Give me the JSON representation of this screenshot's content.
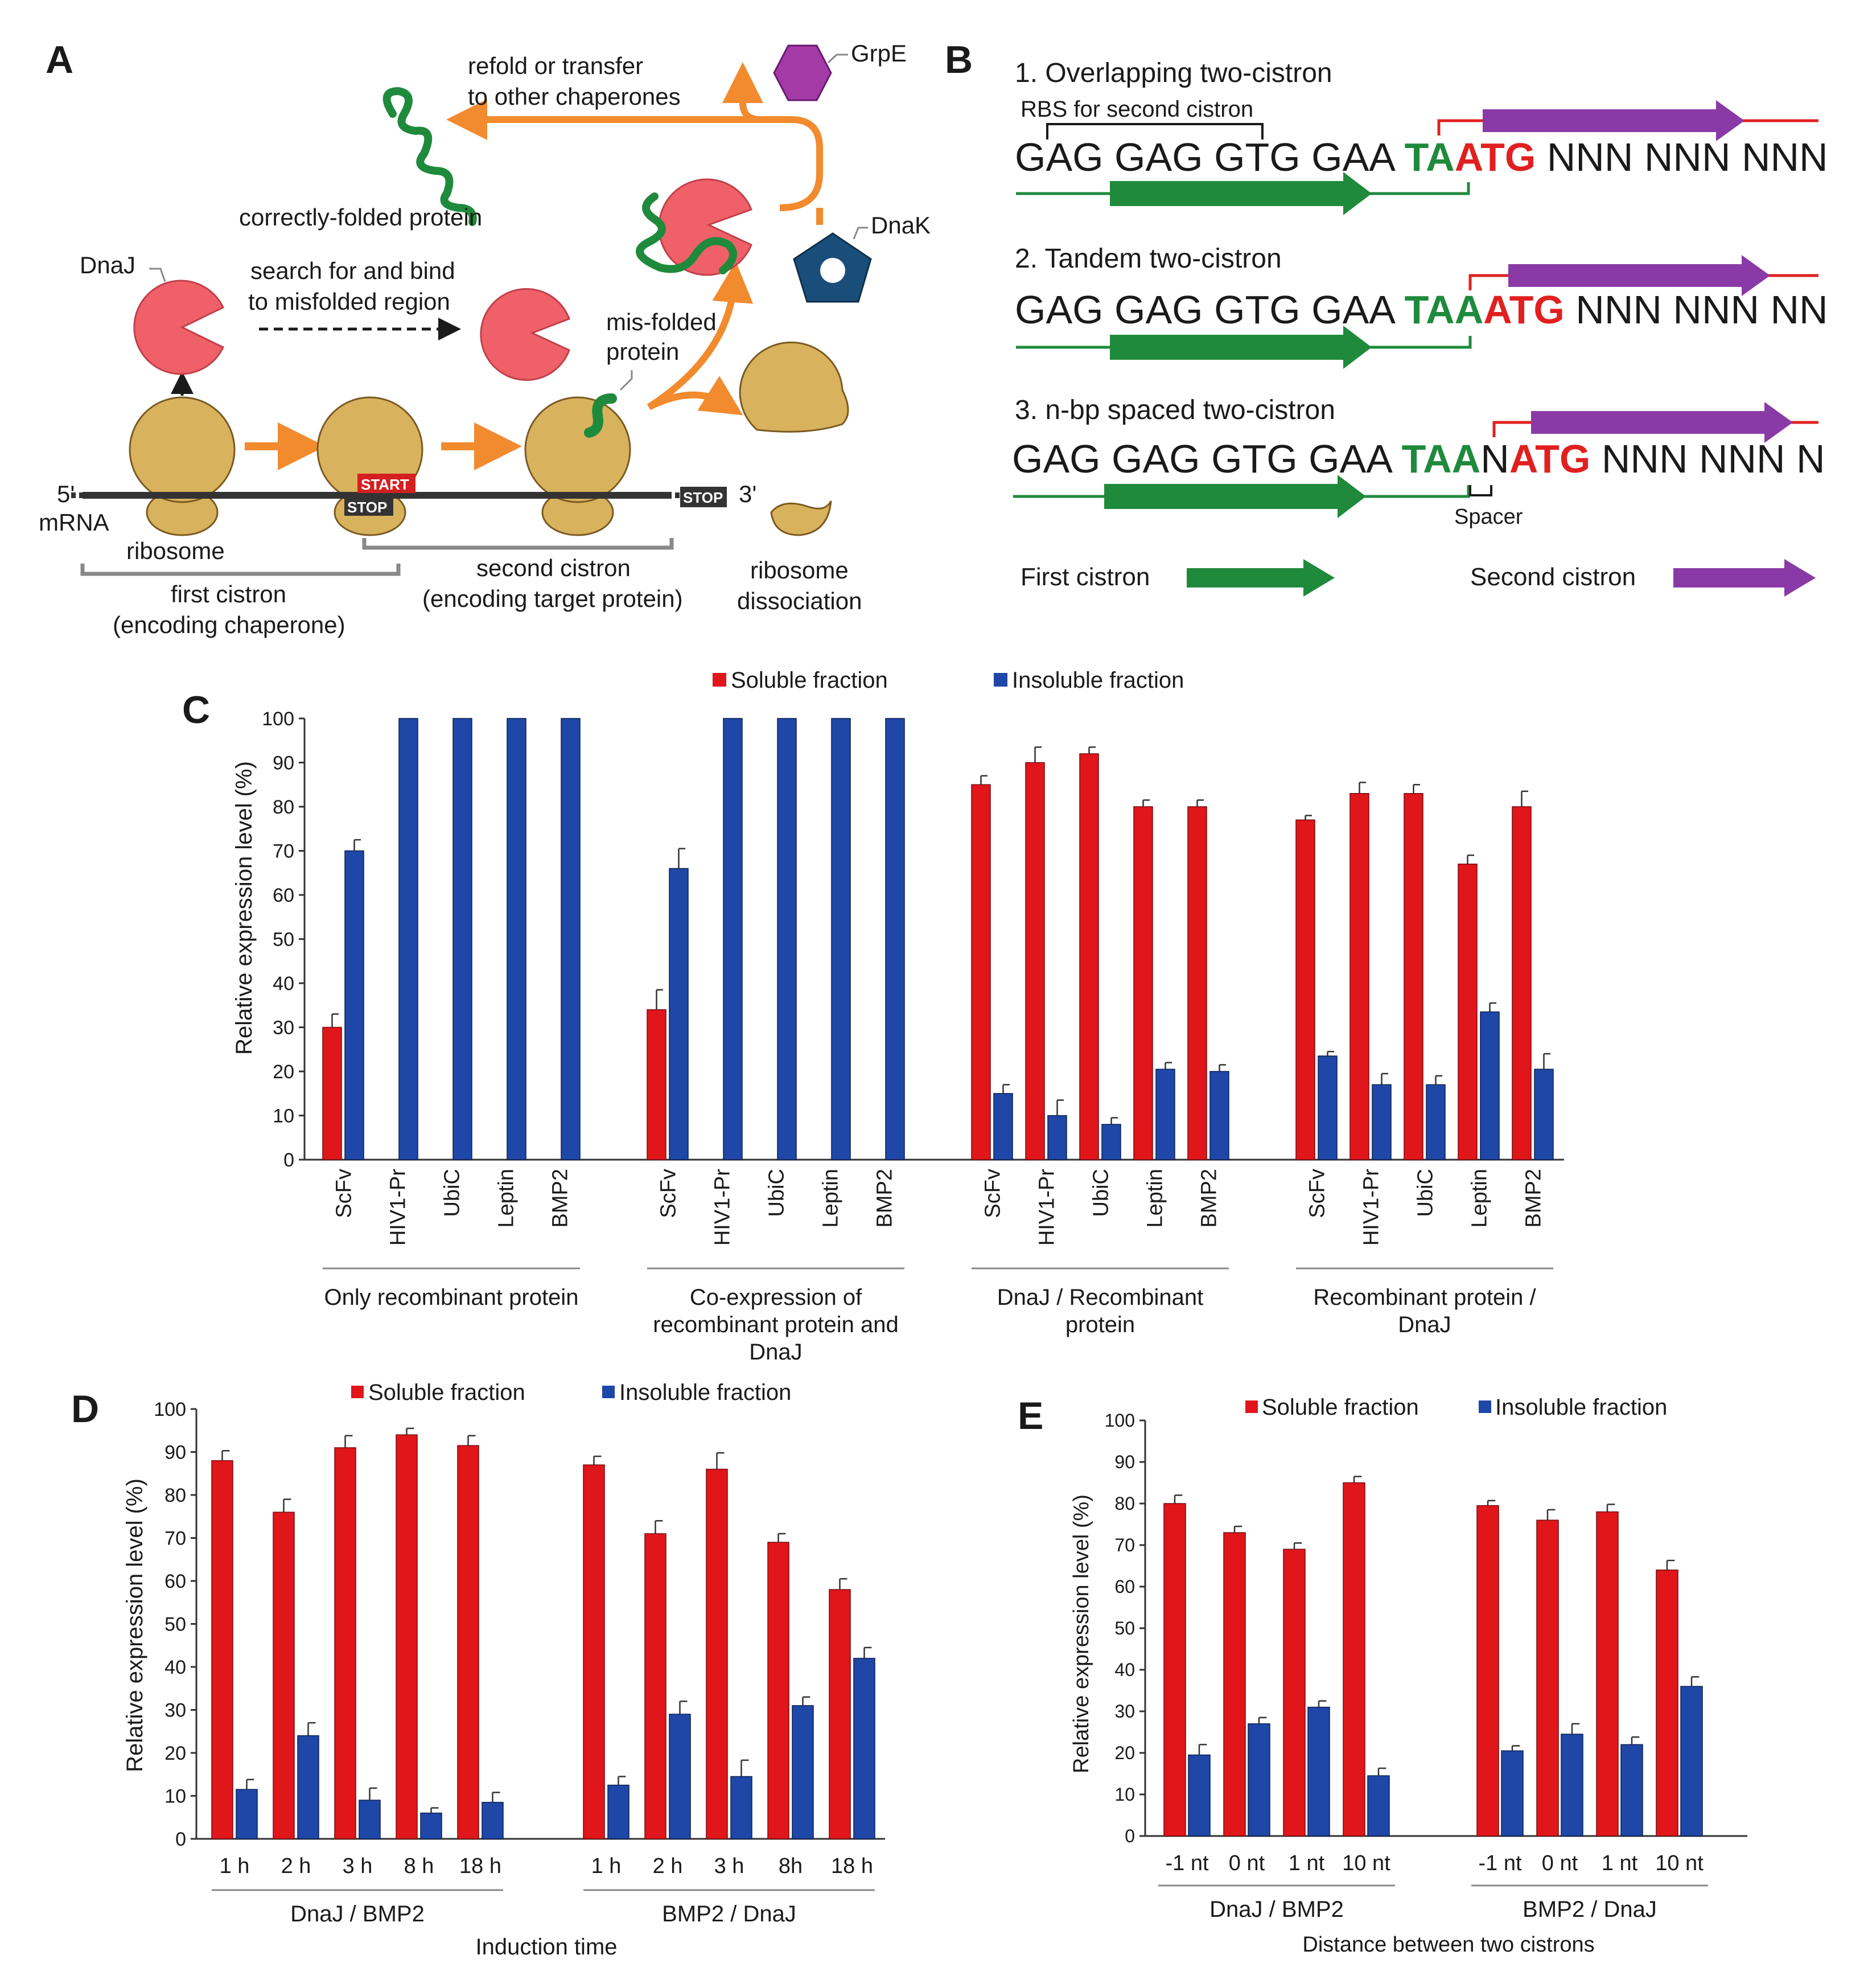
{
  "panels": {
    "a": "A",
    "b": "B",
    "c": "C",
    "d": "D",
    "e": "E"
  },
  "panel_a": {
    "refold": "refold or transfer",
    "refold2": "to other chaperones",
    "grpe": "GrpE",
    "correctly_folded": "correctly-folded protein",
    "dnaj": "DnaJ",
    "search": "search for and bind",
    "search2": "to misfolded region",
    "dnak": "DnaK",
    "misfolded": "mis-folded",
    "misfolded2": "protein",
    "five_prime": "5'",
    "mrna": "mRNA",
    "ribosome": "ribosome",
    "start": "START",
    "stop1": "STOP",
    "stop2": "STOP",
    "three_prime": "3'",
    "first_cistron": "first cistron",
    "first_cistron2": "(encoding chaperone)",
    "second_cistron": "second cistron",
    "second_cistron2": "(encoding target protein)",
    "dissociation": "ribosome",
    "dissociation2": "dissociation",
    "colors": {
      "ribosome": "#d9b25e",
      "dnaj": "#f06068",
      "grpe": "#a33aa6",
      "dnak": "#1a4e7a",
      "arrow": "#f28a2e",
      "protein": "#1f8a3c"
    }
  },
  "panel_b": {
    "h1": "1. Overlapping two-cistron",
    "rbs": "RBS for second cistron",
    "s1_black": "GAG GAG GTG GAA ",
    "s1_green": "TA",
    "s1_red": "ATG",
    "s1_tail": " NNN NNN NNN",
    "h2": "2. Tandem two-cistron",
    "s2_black": "GAG GAG GTG GAA ",
    "s2_green": "TAA",
    "s2_red": "ATG",
    "s2_tail": " NNN NNN NN",
    "h3": "3. n-bp spaced two-cistron",
    "s3_black": "GAG GAG GTG GAA ",
    "s3_green": "TAA",
    "s3_n": "N",
    "s3_red": "ATG",
    "s3_tail": " NNN NNN N",
    "spacer": "Spacer",
    "first_cistron": "First cistron",
    "second_cistron": "Second cistron",
    "colors": {
      "first": "#1f8a3c",
      "second": "#8a3aa6",
      "red": "#e02020"
    }
  },
  "chart_data": [
    {
      "id": "C",
      "type": "bar",
      "legend": [
        "Soluble fraction",
        "Insoluble fraction"
      ],
      "legend_position": "top",
      "ylabel": "Relative expression level (%)",
      "ylim": [
        0,
        100
      ],
      "yticks": [
        0,
        10,
        20,
        30,
        40,
        50,
        60,
        70,
        80,
        90,
        100
      ],
      "colors": [
        "#e0161b",
        "#1f47a8"
      ],
      "groups": [
        {
          "label": "Only recombinant protein",
          "categories": [
            "ScFv",
            "HIV1-Pr",
            "UbiC",
            "Leptin",
            "BMP2"
          ],
          "soluble": [
            30,
            0,
            0,
            0,
            0
          ],
          "soluble_err": [
            3,
            0,
            0,
            0,
            0
          ],
          "insoluble": [
            70,
            100,
            100,
            100,
            100
          ],
          "insoluble_err": [
            2.5,
            0,
            0,
            0,
            0
          ]
        },
        {
          "label": "Co-expression of recombinant protein and DnaJ",
          "categories": [
            "ScFv",
            "HIV1-Pr",
            "UbiC",
            "Leptin",
            "BMP2"
          ],
          "soluble": [
            34,
            0,
            0,
            0,
            0
          ],
          "soluble_err": [
            4.5,
            0,
            0,
            0,
            0
          ],
          "insoluble": [
            66,
            100,
            100,
            100,
            100
          ],
          "insoluble_err": [
            4.5,
            0,
            0,
            0,
            0
          ]
        },
        {
          "label": "DnaJ / Recombinant protein",
          "categories": [
            "ScFv",
            "HIV1-Pr",
            "UbiC",
            "Leptin",
            "BMP2"
          ],
          "soluble": [
            85,
            90,
            92,
            80,
            80
          ],
          "soluble_err": [
            2,
            3.5,
            1.5,
            1.5,
            1.5
          ],
          "insoluble": [
            15,
            10,
            8,
            20.5,
            20
          ],
          "insoluble_err": [
            2,
            3.5,
            1.5,
            1.5,
            1.5
          ]
        },
        {
          "label": "Recombinant protein / DnaJ",
          "categories": [
            "ScFv",
            "HIV1-Pr",
            "UbiC",
            "Leptin",
            "BMP2"
          ],
          "soluble": [
            77,
            83,
            83,
            67,
            80
          ],
          "soluble_err": [
            1,
            2.5,
            2,
            2,
            3.5
          ],
          "insoluble": [
            23.5,
            17,
            17,
            33.5,
            20.5
          ],
          "insoluble_err": [
            1,
            2.5,
            2,
            2,
            3.5
          ]
        }
      ]
    },
    {
      "id": "D",
      "type": "bar",
      "legend": [
        "Soluble fraction",
        "Insoluble fraction"
      ],
      "legend_position": "top",
      "ylabel": "Relative expression level (%)",
      "xlabel": "Induction time",
      "ylim": [
        0,
        100
      ],
      "yticks": [
        0,
        10,
        20,
        30,
        40,
        50,
        60,
        70,
        80,
        90,
        100
      ],
      "colors": [
        "#e0161b",
        "#1f47a8"
      ],
      "groups": [
        {
          "label": "DnaJ / BMP2",
          "categories": [
            "1 h",
            "2 h",
            "3 h",
            "8 h",
            "18 h"
          ],
          "soluble": [
            88,
            76,
            91,
            94,
            91.5
          ],
          "soluble_err": [
            2.3,
            3,
            2.8,
            1.5,
            2.3
          ],
          "insoluble": [
            11.5,
            24,
            9,
            6,
            8.5
          ],
          "insoluble_err": [
            2.3,
            3,
            2.8,
            1.2,
            2.3
          ]
        },
        {
          "label": "BMP2 / DnaJ",
          "categories": [
            "1 h",
            "2 h",
            "3 h",
            "8h",
            "18 h"
          ],
          "soluble": [
            87,
            71,
            86,
            69,
            58
          ],
          "soluble_err": [
            2,
            3,
            3.8,
            2,
            2.5
          ],
          "insoluble": [
            12.5,
            29,
            14.5,
            31,
            42
          ],
          "insoluble_err": [
            2,
            3,
            3.8,
            2,
            2.5
          ]
        }
      ]
    },
    {
      "id": "E",
      "type": "bar",
      "legend": [
        "Soluble fraction",
        "Insoluble fraction"
      ],
      "legend_position": "top",
      "ylabel": "Relative expression level (%)",
      "xlabel": "Distance between two cistrons",
      "ylim": [
        0,
        100
      ],
      "yticks": [
        0,
        10,
        20,
        30,
        40,
        50,
        60,
        70,
        80,
        90,
        100
      ],
      "colors": [
        "#e0161b",
        "#1f47a8"
      ],
      "groups": [
        {
          "label": "DnaJ / BMP2",
          "categories": [
            "-1 nt",
            "0 nt",
            "1 nt",
            "10 nt"
          ],
          "soluble": [
            80,
            73,
            69,
            85
          ],
          "soluble_err": [
            2,
            1.5,
            1.5,
            1.5
          ],
          "insoluble": [
            19.5,
            27,
            31,
            14.5
          ],
          "insoluble_err": [
            2.5,
            1.5,
            1.5,
            1.8
          ]
        },
        {
          "label": "BMP2 / DnaJ",
          "categories": [
            "-1 nt",
            "0 nt",
            "1 nt",
            "10 nt"
          ],
          "soluble": [
            79.5,
            76,
            78,
            64
          ],
          "soluble_err": [
            1.2,
            2.5,
            1.8,
            2.3
          ],
          "insoluble": [
            20.5,
            24.5,
            22,
            36
          ],
          "insoluble_err": [
            1.2,
            2.5,
            1.8,
            2.3
          ]
        }
      ]
    }
  ]
}
